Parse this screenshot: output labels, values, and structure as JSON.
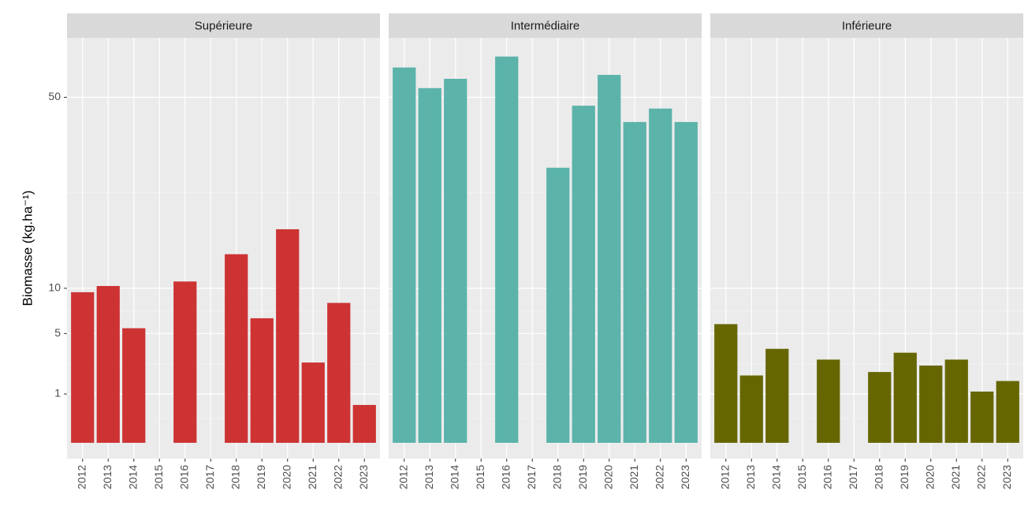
{
  "chart_data": {
    "type": "bar",
    "y_scale": "sqrt",
    "grid": true,
    "y_label": "Biomasse (kg.ha⁻¹)",
    "ylim": [
      0,
      68.7
    ],
    "yticks": [
      1,
      5,
      10,
      50
    ],
    "categories": [
      "2012",
      "2013",
      "2014",
      "2015",
      "2016",
      "2017",
      "2018",
      "2019",
      "2020",
      "2021",
      "2022",
      "2023"
    ],
    "panels": [
      {
        "title": "Supérieure",
        "color": "#cd3333",
        "values": [
          9.5,
          10.3,
          5.5,
          null,
          10.9,
          null,
          14.9,
          6.5,
          19.1,
          2.7,
          8.2,
          0.6
        ]
      },
      {
        "title": "Intermédiaire",
        "color": "#5bb3aa",
        "values": [
          59.0,
          52.7,
          55.5,
          null,
          62.5,
          null,
          31.7,
          47.6,
          56.7,
          43.1,
          46.8,
          43.1
        ]
      },
      {
        "title": "Inférieure",
        "color": "#666600",
        "values": [
          5.9,
          1.9,
          3.7,
          null,
          2.9,
          null,
          2.1,
          3.4,
          2.5,
          2.9,
          1.1,
          1.6
        ]
      }
    ]
  }
}
